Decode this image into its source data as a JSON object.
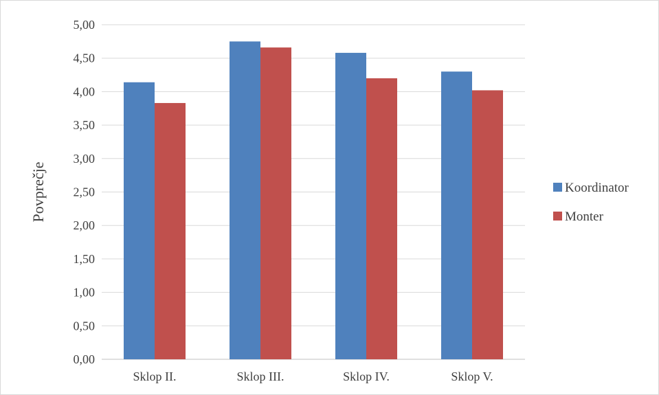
{
  "chart_data": {
    "type": "bar",
    "title": "",
    "xlabel": "",
    "ylabel": "Povprečje",
    "ylim": [
      0,
      5
    ],
    "ytick_step": 0.5,
    "ytick_labels": [
      "0,00",
      "0,50",
      "1,00",
      "1,50",
      "2,00",
      "2,50",
      "3,00",
      "3,50",
      "4,00",
      "4,50",
      "5,00"
    ],
    "categories": [
      "Sklop II.",
      "Sklop III.",
      "Sklop IV.",
      "Sklop V."
    ],
    "series": [
      {
        "name": "Koordinator",
        "color": "#4f81bd",
        "values": [
          4.14,
          4.75,
          4.58,
          4.3
        ]
      },
      {
        "name": "Monter",
        "color": "#c0504d",
        "values": [
          3.83,
          4.66,
          4.2,
          4.02
        ]
      }
    ],
    "grid": true,
    "legend_position": "right"
  }
}
